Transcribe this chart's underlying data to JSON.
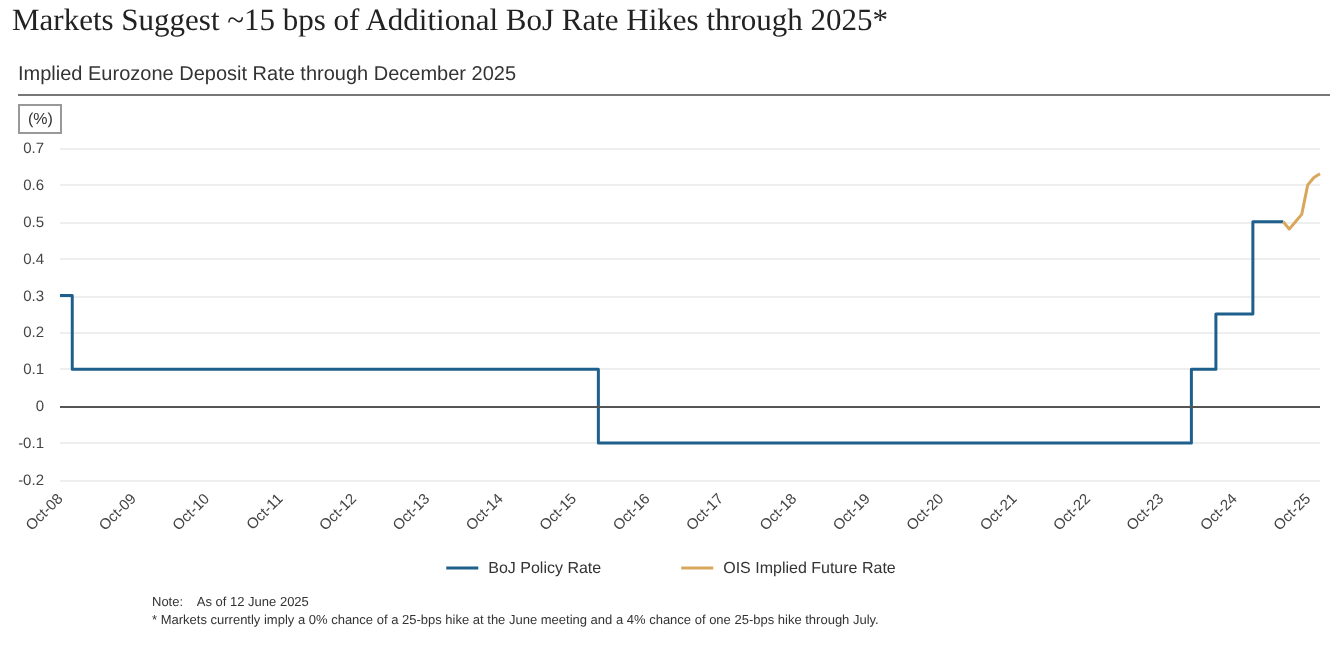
{
  "chart_data": {
    "type": "step",
    "title": "Markets Suggest ~15 bps of Additional BoJ Rate Hikes through 2025*",
    "subtitle": "Implied Eurozone Deposit Rate through December 2025",
    "ylabel": "(%)",
    "series": [
      {
        "name": "BoJ Policy Rate",
        "color": "#1f5f8b",
        "x": [
          "2008-10",
          "2008-12",
          "2016-02",
          "2024-03",
          "2024-07",
          "2025-01",
          "2025-06"
        ],
        "values": [
          0.3,
          0.1,
          -0.1,
          0.1,
          0.25,
          0.5,
          0.5
        ]
      },
      {
        "name": "OIS Implied Future Rate",
        "type": "line",
        "color": "#d9a75c",
        "x": [
          "2025-06",
          "2025-07",
          "2025-08",
          "2025-09",
          "2025-10",
          "2025-11",
          "2025-12"
        ],
        "values": [
          0.5,
          0.48,
          0.5,
          0.52,
          0.6,
          0.62,
          0.63
        ]
      }
    ],
    "xlim": [
      "2008-10",
      "2025-12"
    ],
    "xticks": [
      {
        "value": "2008-10",
        "label": "Oct-08"
      },
      {
        "value": "2009-10",
        "label": "Oct-09"
      },
      {
        "value": "2010-10",
        "label": "Oct-10"
      },
      {
        "value": "2011-10",
        "label": "Oct-11"
      },
      {
        "value": "2012-10",
        "label": "Oct-12"
      },
      {
        "value": "2013-10",
        "label": "Oct-13"
      },
      {
        "value": "2014-10",
        "label": "Oct-14"
      },
      {
        "value": "2015-10",
        "label": "Oct-15"
      },
      {
        "value": "2016-10",
        "label": "Oct-16"
      },
      {
        "value": "2017-10",
        "label": "Oct-17"
      },
      {
        "value": "2018-10",
        "label": "Oct-18"
      },
      {
        "value": "2019-10",
        "label": "Oct-19"
      },
      {
        "value": "2020-10",
        "label": "Oct-20"
      },
      {
        "value": "2021-10",
        "label": "Oct-21"
      },
      {
        "value": "2022-10",
        "label": "Oct-22"
      },
      {
        "value": "2023-10",
        "label": "Oct-23"
      },
      {
        "value": "2024-10",
        "label": "Oct-24"
      },
      {
        "value": "2025-10",
        "label": "Oct-25"
      }
    ],
    "ylim": [
      -0.2,
      0.7
    ],
    "yticks": [
      -0.2,
      -0.1,
      0,
      0.1,
      0.2,
      0.3,
      0.4,
      0.5,
      0.6,
      0.7
    ],
    "ref_lines": [
      {
        "axis": "y",
        "value": 0,
        "color": "#555555"
      }
    ],
    "grid": "y",
    "legend": "bottom",
    "marker": "none",
    "line_style": "solid",
    "annotations": [
      "Note:    As of 12 June 2025",
      "* Markets currently imply a 0% chance of a 25-bps hike at the June meeting and a 4% chance of one 25-bps hike through July."
    ]
  }
}
